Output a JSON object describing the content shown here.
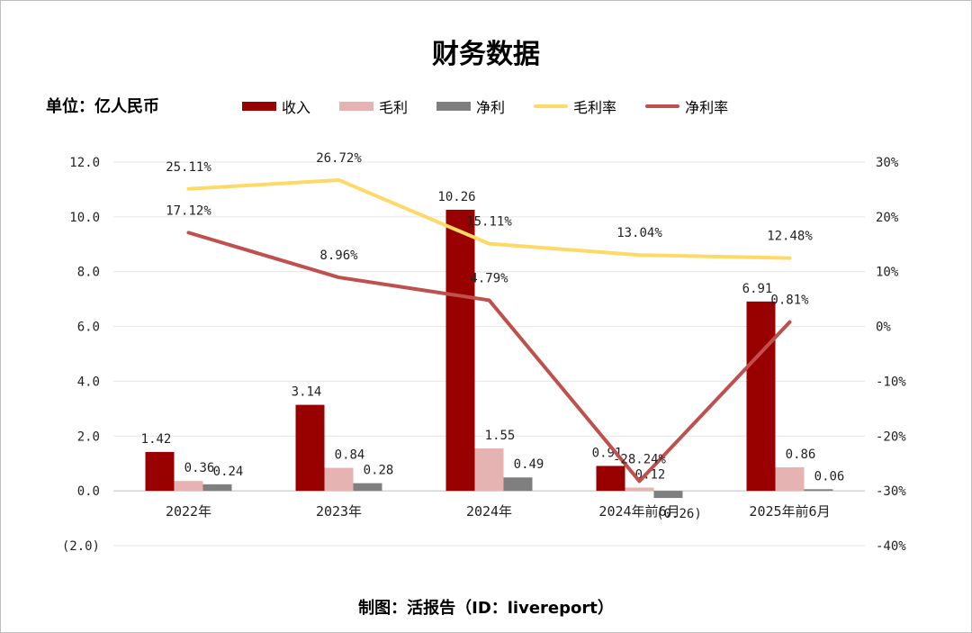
{
  "title": "财务数据",
  "unit_label": "单位：亿人民币",
  "source_label": "制图：活报告（ID：livereport）",
  "colors": {
    "revenue": "#990000",
    "gross_profit": "#e6b3b3",
    "net_profit": "#7f7f7f",
    "gross_margin": "#ffd966",
    "net_margin": "#c0504d",
    "negative_tick": "#ff0000"
  },
  "legend": [
    {
      "label": "收入",
      "kind": "bar",
      "color": "#990000"
    },
    {
      "label": "毛利",
      "kind": "bar",
      "color": "#e6b3b3"
    },
    {
      "label": "净利",
      "kind": "bar",
      "color": "#7f7f7f"
    },
    {
      "label": "毛利率",
      "kind": "line",
      "color": "#ffd966"
    },
    {
      "label": "净利率",
      "kind": "line",
      "color": "#c0504d"
    }
  ],
  "chart_data": {
    "type": "bar",
    "categories": [
      "2022年",
      "2023年",
      "2024年",
      "2024年前6月",
      "2025年前6月"
    ],
    "series": [
      {
        "name": "收入",
        "type": "bar",
        "axis": "left",
        "values": [
          1.42,
          3.14,
          10.26,
          0.91,
          6.91
        ],
        "labels": [
          "1.42",
          "3.14",
          "10.26",
          "0.91",
          "6.91"
        ]
      },
      {
        "name": "毛利",
        "type": "bar",
        "axis": "left",
        "values": [
          0.36,
          0.84,
          1.55,
          0.12,
          0.86
        ],
        "labels": [
          "0.36",
          "0.84",
          "1.55",
          "0.12",
          "0.86"
        ]
      },
      {
        "name": "净利",
        "type": "bar",
        "axis": "left",
        "values": [
          0.24,
          0.28,
          0.49,
          -0.26,
          0.06
        ],
        "labels": [
          "0.24",
          "0.28",
          "0.49",
          "(0.26)",
          "0.06"
        ]
      },
      {
        "name": "毛利率",
        "type": "line",
        "axis": "right",
        "values": [
          25.11,
          26.72,
          15.11,
          13.04,
          12.48
        ],
        "labels": [
          "25.11%",
          "26.72%",
          "15.11%",
          "13.04%",
          "12.48%"
        ]
      },
      {
        "name": "净利率",
        "type": "line",
        "axis": "right",
        "values": [
          17.12,
          8.96,
          4.79,
          -28.24,
          0.81
        ],
        "labels": [
          "17.12%",
          "8.96%",
          "4.79%",
          "-28.24%",
          "0.81%"
        ]
      }
    ],
    "y_left": {
      "ylim": [
        -2.0,
        12.0
      ],
      "ticks": [
        "12.0",
        "10.0",
        "8.0",
        "6.0",
        "4.0",
        "2.0",
        "0.0",
        "(2.0)"
      ]
    },
    "y_right": {
      "ylim": [
        -40,
        30
      ],
      "ticks": [
        "30%",
        "20%",
        "10%",
        "0%",
        "-10%",
        "-20%",
        "-30%",
        "-40%"
      ]
    },
    "grid": true,
    "legend_position": "top"
  }
}
